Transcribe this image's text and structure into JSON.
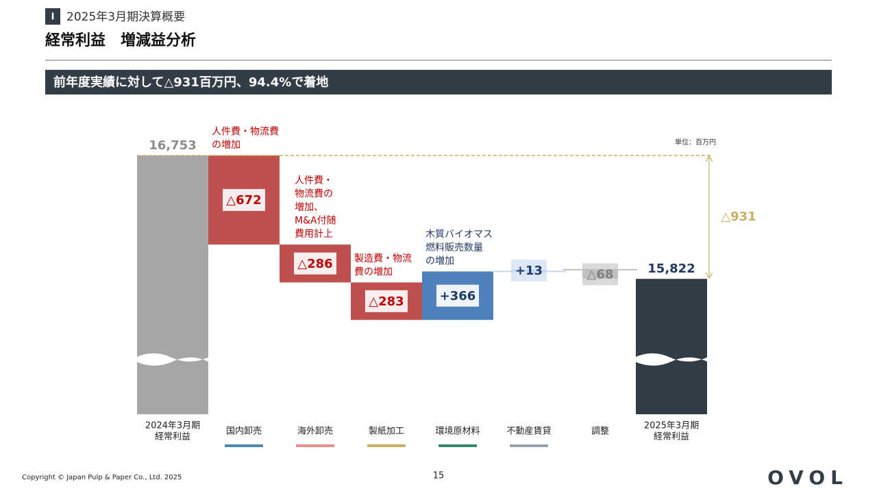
{
  "header": {
    "section": "Ⅰ",
    "section_title": "2025年3月期決算概要",
    "title": "経常利益　増減益分析"
  },
  "banner": "前年度実績に対して△931百万円、94.4%で着地",
  "chart_data": {
    "type": "waterfall",
    "unit": "単位：百万円",
    "categories": [
      [
        "2024年3月期",
        "経常利益"
      ],
      [
        "国内卸売"
      ],
      [
        "海外卸売"
      ],
      [
        "製紙加工"
      ],
      [
        "環境原材料"
      ],
      [
        "不動産賃貸"
      ],
      [
        "調整"
      ],
      [
        "2025年3月期",
        "経常利益"
      ]
    ],
    "values": [
      16753,
      -672,
      -286,
      -283,
      366,
      13,
      -68,
      15822
    ],
    "value_labels": [
      "16,753",
      "△672",
      "△286",
      "△283",
      "+366",
      "+13",
      "△68",
      "15,822"
    ],
    "colors": [
      "#a6a6a6",
      "#c0504d",
      "#c0504d",
      "#c0504d",
      "#4f81bd",
      "#c6d9f0",
      "#bfbfbf",
      "#333d47"
    ],
    "label_colors": [
      "#8c8c8c",
      "#c00000",
      "#c00000",
      "#c00000",
      "#1f3864",
      "#1f3864",
      "#7f7f7f",
      "#1f3864"
    ],
    "legend_colors": [
      null,
      "#4a8ab5",
      "#e8908f",
      "#c8b060",
      "#2e8b6a",
      "#9aa3ad",
      null,
      null
    ],
    "notes": [
      null,
      [
        "人件費・物流費",
        "の増加"
      ],
      [
        "人件費・",
        "物流費の",
        "増加、",
        "M&A付随",
        "費用計上"
      ],
      [
        "製造費・物流",
        "費の増加"
      ],
      [
        "木質バイオマス",
        "燃料販売数量",
        "の増加"
      ],
      null,
      null,
      null
    ],
    "difference": -931,
    "difference_label": "△931",
    "ylim": [
      14800,
      16800
    ]
  },
  "footer": {
    "copyright": "Copyright © Japan Pulp & Paper Co., Ltd. 2025",
    "page": "15",
    "logo": "OVOL"
  }
}
